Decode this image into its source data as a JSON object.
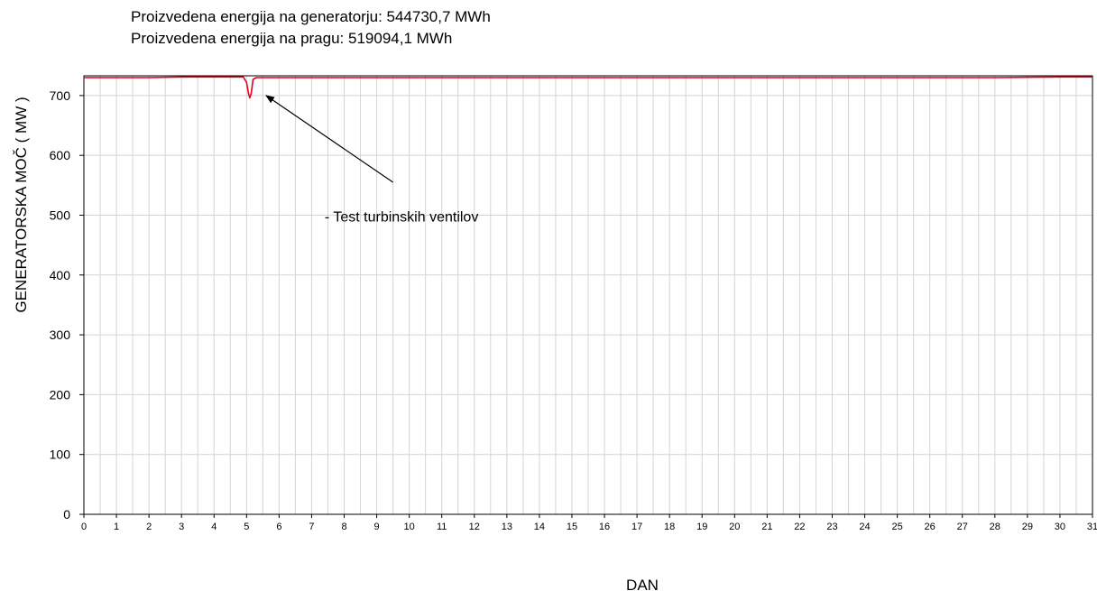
{
  "info_lines": [
    "Proizvedena energija na generatorju: 544730,7 MWh",
    "Proizvedena energija na pragu: 519094,1 MWh"
  ],
  "chart_data": {
    "type": "line",
    "title": "",
    "xlabel": "DAN",
    "ylabel": "GENERATORSKA MOČ  ( MW )",
    "xlim": [
      0,
      31
    ],
    "ylim": [
      0,
      733
    ],
    "x_ticks": [
      0,
      1,
      2,
      3,
      4,
      5,
      6,
      7,
      8,
      9,
      10,
      11,
      12,
      13,
      14,
      15,
      16,
      17,
      18,
      19,
      20,
      21,
      22,
      23,
      24,
      25,
      26,
      27,
      28,
      29,
      30,
      31
    ],
    "y_ticks": [
      0,
      100,
      200,
      300,
      400,
      500,
      600,
      700
    ],
    "minor_grid_step_x": 0.5,
    "grid": true,
    "series": [
      {
        "color": "#e8001c",
        "x": [
          0,
          1,
          2,
          3,
          4,
          4.9,
          5.0,
          5.06,
          5.1,
          5.14,
          5.2,
          5.3,
          6,
          8,
          10,
          12,
          14,
          16,
          18,
          20,
          22,
          24,
          26,
          28,
          30,
          31
        ],
        "y": [
          730,
          730,
          730,
          731,
          731,
          731,
          722,
          703,
          696,
          703,
          727,
          730,
          730,
          730,
          730,
          730,
          730,
          730,
          730,
          730,
          730,
          730,
          730,
          730,
          731,
          731
        ]
      }
    ],
    "annotations": [
      {
        "text": "- Test turbinskih ventilov",
        "x": 7.4,
        "y": 500,
        "arrow_from": [
          9.5,
          555
        ],
        "arrow_to": [
          5.6,
          700
        ]
      }
    ]
  }
}
